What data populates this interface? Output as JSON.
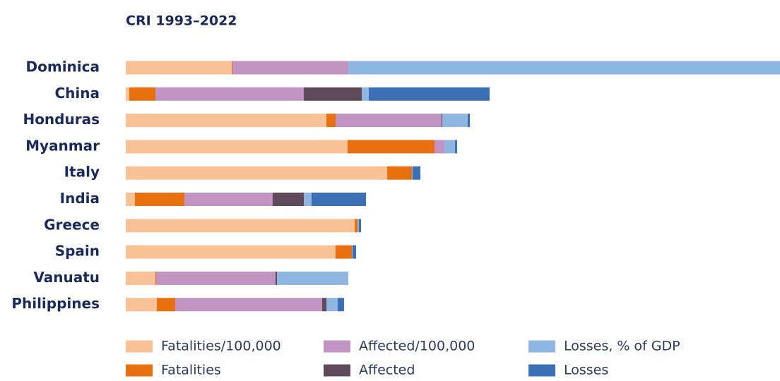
{
  "chart_data": {
    "type": "stacked-bar-horizontal",
    "title": "CRI 1993–2022",
    "categories": [
      "Dominica",
      "China",
      "Honduras",
      "Myanmar",
      "Italy",
      "India",
      "Greece",
      "Spain",
      "Vanuatu",
      "Philippines"
    ],
    "series": [
      {
        "name": "Fatalities/100,000",
        "color": "#f9c196",
        "values": [
          150,
          5,
          284,
          314,
          370,
          13,
          324,
          297,
          42,
          44
        ]
      },
      {
        "name": "Fatalities",
        "color": "#e8700f",
        "values": [
          1,
          37,
          13,
          123,
          35,
          70,
          4,
          23,
          1,
          26
        ]
      },
      {
        "name": "Affected/100,000",
        "color": "#c093c3",
        "values": [
          164,
          210,
          150,
          14,
          0,
          125,
          0,
          0,
          169,
          208
        ]
      },
      {
        "name": "Affected",
        "color": "#5e4a5a",
        "values": [
          0,
          82,
          1,
          0,
          0,
          44,
          0,
          0,
          2,
          6
        ]
      },
      {
        "name": "Losses, % of GDP",
        "color": "#8eb6e0",
        "values": [
          611,
          10,
          36,
          15,
          1,
          11,
          2,
          1,
          101,
          16
        ]
      },
      {
        "name": "Losses",
        "color": "#3b6fb6",
        "values": [
          0,
          171,
          3,
          3,
          11,
          77,
          3,
          5,
          0,
          9
        ]
      }
    ]
  }
}
